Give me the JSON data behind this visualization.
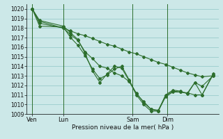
{
  "background_color": "#cce8e8",
  "grid_color": "#99cccc",
  "line_color": "#2d6e2d",
  "xlabel": "Pression niveau de la mer( hPa )",
  "ylim": [
    1009,
    1020.5
  ],
  "xlim": [
    0,
    10.5
  ],
  "yticks": [
    1009,
    1010,
    1011,
    1012,
    1013,
    1014,
    1015,
    1016,
    1017,
    1018,
    1019,
    1020
  ],
  "day_labels": [
    "Ven",
    "Lun",
    "Sam",
    "Dim"
  ],
  "day_positions": [
    0.3,
    2.0,
    5.8,
    7.7
  ],
  "vline_positions": [
    0.3,
    2.0,
    5.8,
    7.7
  ],
  "series_x": [
    [
      0.3,
      0.7,
      2.0,
      2.4,
      2.8,
      3.2,
      3.6,
      4.0,
      4.4,
      4.8,
      5.2,
      5.6,
      6.0,
      6.4,
      6.8,
      7.2,
      7.6,
      8.0,
      8.4,
      8.8,
      9.2,
      9.6,
      10.2
    ],
    [
      0.3,
      0.7,
      2.0,
      2.4,
      2.8,
      3.2,
      3.6,
      4.0,
      4.4,
      4.8,
      5.2,
      5.6,
      6.0,
      6.4,
      6.8,
      7.2,
      7.6,
      8.0,
      8.4,
      8.8,
      9.2,
      9.6,
      10.2
    ],
    [
      0.3,
      0.7,
      2.0,
      2.4,
      2.8,
      3.2,
      3.6,
      4.0,
      4.4,
      4.8,
      5.2,
      5.6,
      6.0,
      6.4,
      6.8,
      7.2,
      7.6,
      8.0,
      8.4,
      8.8,
      9.2,
      9.6,
      10.2
    ],
    [
      0.3,
      0.7,
      2.0,
      2.4,
      2.8,
      3.2,
      3.6,
      4.0,
      4.4,
      4.8,
      5.2,
      5.6,
      6.0,
      6.4,
      6.8,
      7.2,
      7.6,
      8.0,
      8.4,
      8.8,
      9.2,
      9.6,
      10.2
    ]
  ],
  "series_y": [
    [
      1020.0,
      1018.7,
      1018.0,
      1017.7,
      1017.4,
      1017.2,
      1016.9,
      1016.6,
      1016.3,
      1016.1,
      1015.8,
      1015.5,
      1015.3,
      1015.0,
      1014.7,
      1014.4,
      1014.2,
      1013.9,
      1013.6,
      1013.3,
      1013.1,
      1012.9,
      1013.0
    ],
    [
      1020.0,
      1018.5,
      1018.0,
      1017.3,
      1016.7,
      1015.5,
      1014.8,
      1014.0,
      1013.8,
      1013.3,
      1013.0,
      1012.4,
      1011.2,
      1010.2,
      1009.5,
      1009.3,
      1010.8,
      1011.3,
      1011.3,
      1011.2,
      1011.0,
      1011.0,
      1013.1
    ],
    [
      1020.0,
      1018.2,
      1018.1,
      1017.0,
      1016.2,
      1015.1,
      1013.7,
      1012.7,
      1013.1,
      1013.7,
      1014.0,
      1012.6,
      1011.1,
      1010.3,
      1009.5,
      1009.4,
      1010.9,
      1011.4,
      1011.3,
      1011.2,
      1012.3,
      1011.9,
      1013.0
    ],
    [
      1020.0,
      1018.8,
      1018.2,
      1017.5,
      1016.8,
      1015.3,
      1013.5,
      1012.3,
      1013.2,
      1014.0,
      1013.8,
      1012.5,
      1011.0,
      1010.0,
      1009.3,
      1009.3,
      1011.0,
      1011.5,
      1011.4,
      1011.1,
      1012.3,
      1011.0,
      1013.2
    ]
  ]
}
